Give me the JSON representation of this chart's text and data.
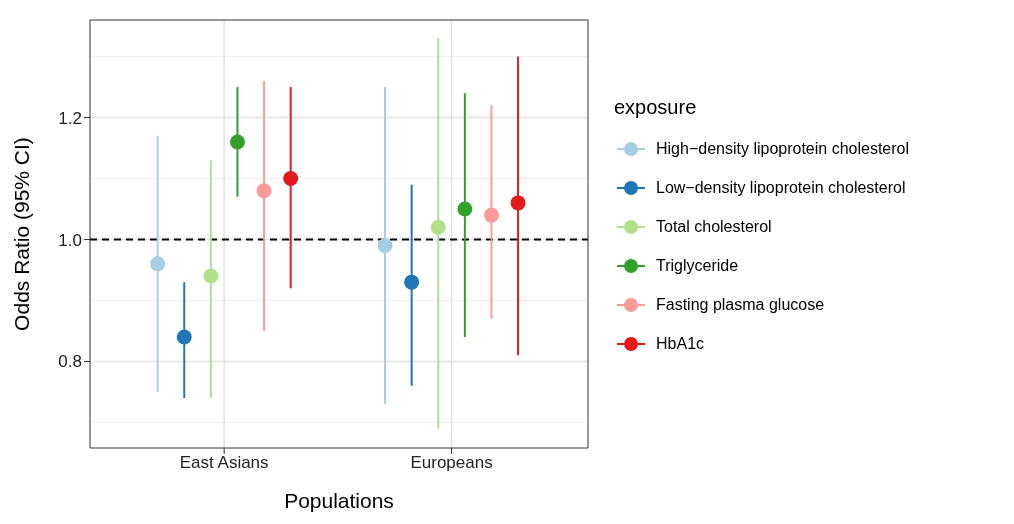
{
  "chart_data": {
    "type": "scatter",
    "xlabel": "Populations",
    "ylabel": "Odds Ratio (95% CI)",
    "legend_title": "exposure",
    "categories": [
      "East Asians",
      "Europeans"
    ],
    "ylim": [
      0.658,
      1.36
    ],
    "yticks": [
      {
        "value": 0.8,
        "label": "0.8"
      },
      {
        "value": 1.0,
        "label": "1.0"
      },
      {
        "value": 1.2,
        "label": "1.2"
      }
    ],
    "grid": true,
    "legend": "right",
    "marker": "circle",
    "ref_lines": [
      {
        "axis": "y",
        "value": 1.0,
        "label": null,
        "color": "#000000",
        "line_style": "dashed"
      }
    ],
    "series": [
      {
        "name": "High−density lipoprotein cholesterol",
        "color": "#a6cee3",
        "values": [
          0.96,
          0.99
        ],
        "errors": [
          [
            0.75,
            1.17
          ],
          [
            0.73,
            1.25
          ]
        ]
      },
      {
        "name": "Low−density lipoprotein cholesterol",
        "color": "#1f78b4",
        "values": [
          0.84,
          0.93
        ],
        "errors": [
          [
            0.74,
            0.93
          ],
          [
            0.76,
            1.09
          ]
        ]
      },
      {
        "name": "Total cholesterol",
        "color": "#b2df8a",
        "values": [
          0.94,
          1.02
        ],
        "errors": [
          [
            0.74,
            1.13
          ],
          [
            0.69,
            1.33
          ]
        ]
      },
      {
        "name": "Triglyceride",
        "color": "#33a02c",
        "values": [
          1.16,
          1.05
        ],
        "errors": [
          [
            1.07,
            1.25
          ],
          [
            0.84,
            1.24
          ]
        ]
      },
      {
        "name": "Fasting plasma glucose",
        "color": "#fb9a99",
        "values": [
          1.08,
          1.04
        ],
        "errors": [
          [
            0.85,
            1.26
          ],
          [
            0.87,
            1.22
          ]
        ]
      },
      {
        "name": "HbA1c",
        "color": "#e31a1c",
        "values": [
          1.1,
          1.06
        ],
        "errors": [
          [
            0.92,
            1.25
          ],
          [
            0.81,
            1.3
          ]
        ]
      }
    ]
  }
}
